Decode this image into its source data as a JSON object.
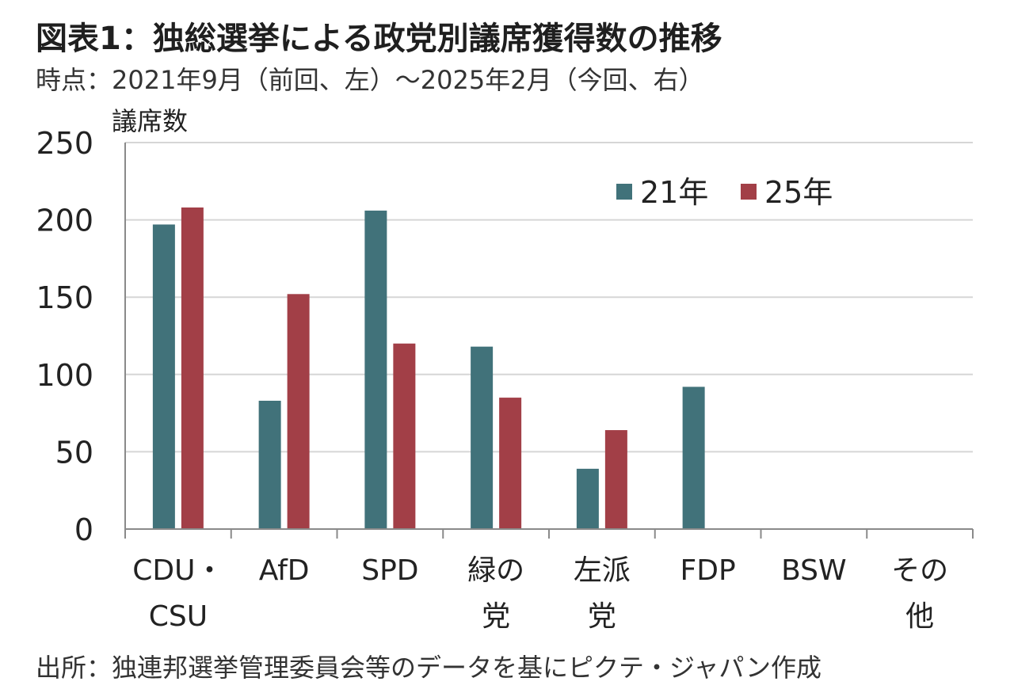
{
  "title": "図表1：独総選挙による政党別議席獲得数の推移",
  "subtitle": "時点：2021年9月（前回、左）～2025年2月（今回、右）",
  "source": "出所：独連邦選挙管理委員会等のデータを基にピクテ・ジャパン作成",
  "colors": {
    "s21": "#41727a",
    "s25": "#a23f47",
    "grid": "#d6d6d6",
    "axis": "#8a8a8a"
  },
  "chart_data": {
    "type": "bar",
    "ylabel": "議席数",
    "ylim": [
      0,
      250
    ],
    "yticks": [
      "0",
      "50",
      "100",
      "150",
      "200",
      "250"
    ],
    "categories": [
      [
        "CDU・",
        "CSU"
      ],
      [
        "AfD"
      ],
      [
        "SPD"
      ],
      [
        "緑の",
        "党"
      ],
      [
        "左派",
        "党"
      ],
      [
        "FDP"
      ],
      [
        "BSW"
      ],
      [
        "その",
        "他"
      ]
    ],
    "series": [
      {
        "name": "21年",
        "values": [
          197,
          83,
          206,
          118,
          39,
          92,
          0,
          0
        ]
      },
      {
        "name": "25年",
        "values": [
          208,
          152,
          120,
          85,
          64,
          0,
          0,
          0
        ]
      }
    ],
    "legend": "top-right",
    "grid": true
  }
}
